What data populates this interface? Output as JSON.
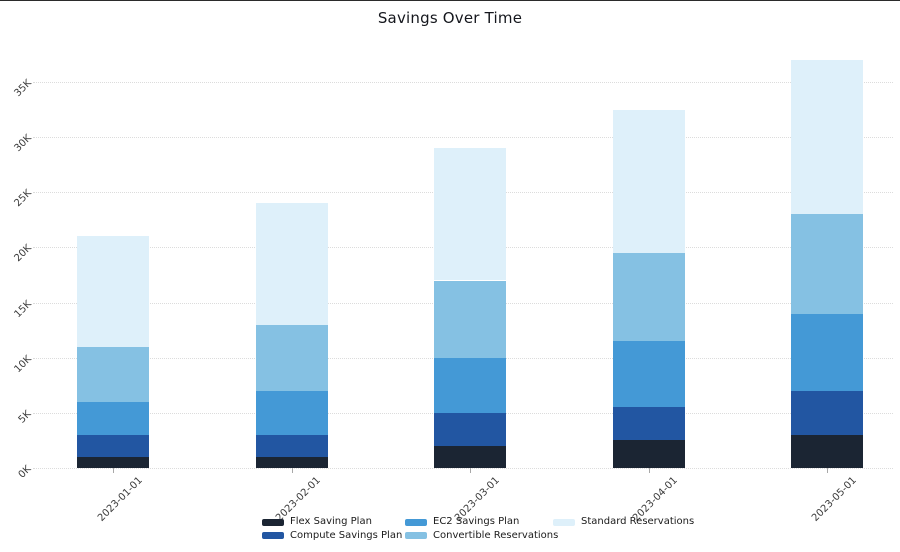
{
  "chart_data": {
    "type": "bar",
    "stacked": true,
    "title": "Savings Over Time",
    "xlabel": "",
    "ylabel": "",
    "categories": [
      "2023-01-01",
      "2023-02-01",
      "2023-03-01",
      "2023-04-01",
      "2023-05-01"
    ],
    "series": [
      {
        "name": "Flex Saving Plan",
        "color": "#1b2533",
        "values": [
          1000,
          1000,
          2000,
          2500,
          3000
        ]
      },
      {
        "name": "Compute Savings Plan",
        "color": "#2256a2",
        "values": [
          2000,
          2000,
          3000,
          3000,
          4000
        ]
      },
      {
        "name": "EC2 Savings Plan",
        "color": "#4499d6",
        "values": [
          3000,
          4000,
          5000,
          6000,
          7000
        ]
      },
      {
        "name": "Convertible Reservations",
        "color": "#85c1e3",
        "values": [
          5000,
          6000,
          7000,
          8000,
          9000
        ]
      },
      {
        "name": "Standard Reservations",
        "color": "#def0fa",
        "values": [
          10000,
          11000,
          12000,
          13000,
          14000
        ]
      }
    ],
    "stack_totals": [
      21000,
      24000,
      29000,
      32500,
      37000
    ],
    "ylim": [
      0,
      37500
    ],
    "yticks": {
      "values": [
        0,
        5000,
        10000,
        15000,
        20000,
        25000,
        30000,
        35000
      ],
      "labels": [
        "0K",
        "5K",
        "10K",
        "15K",
        "20K",
        "25K",
        "30K",
        "35K"
      ]
    },
    "grid": "dotted-horizontal",
    "legend_position": "bottom"
  }
}
